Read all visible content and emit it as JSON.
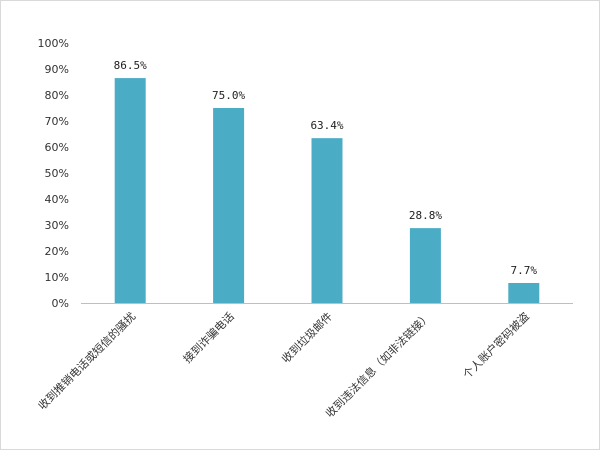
{
  "chart_data": {
    "type": "bar",
    "title": "",
    "xlabel": "",
    "ylabel": "",
    "categories": [
      "收到推销电话或短信的骚扰",
      "接到诈骗电话",
      "收到垃圾邮件",
      "收到违法信息（如非法链接）",
      "个人账户密码被盗"
    ],
    "values": [
      86.5,
      75.0,
      63.4,
      28.8,
      7.7
    ],
    "data_labels": [
      "86.5%",
      "75.0%",
      "63.4%",
      "28.8%",
      "7.7%"
    ],
    "y_ticks": [
      0,
      10,
      20,
      30,
      40,
      50,
      60,
      70,
      80,
      90,
      100
    ],
    "y_tick_labels": [
      "0%",
      "10%",
      "20%",
      "30%",
      "40%",
      "50%",
      "60%",
      "70%",
      "80%",
      "90%",
      "100%"
    ],
    "ylim": [
      0,
      100
    ],
    "grid": false,
    "legend": "none",
    "bar_color": "#4bacc6",
    "axis_color": "#bfbfbf"
  }
}
